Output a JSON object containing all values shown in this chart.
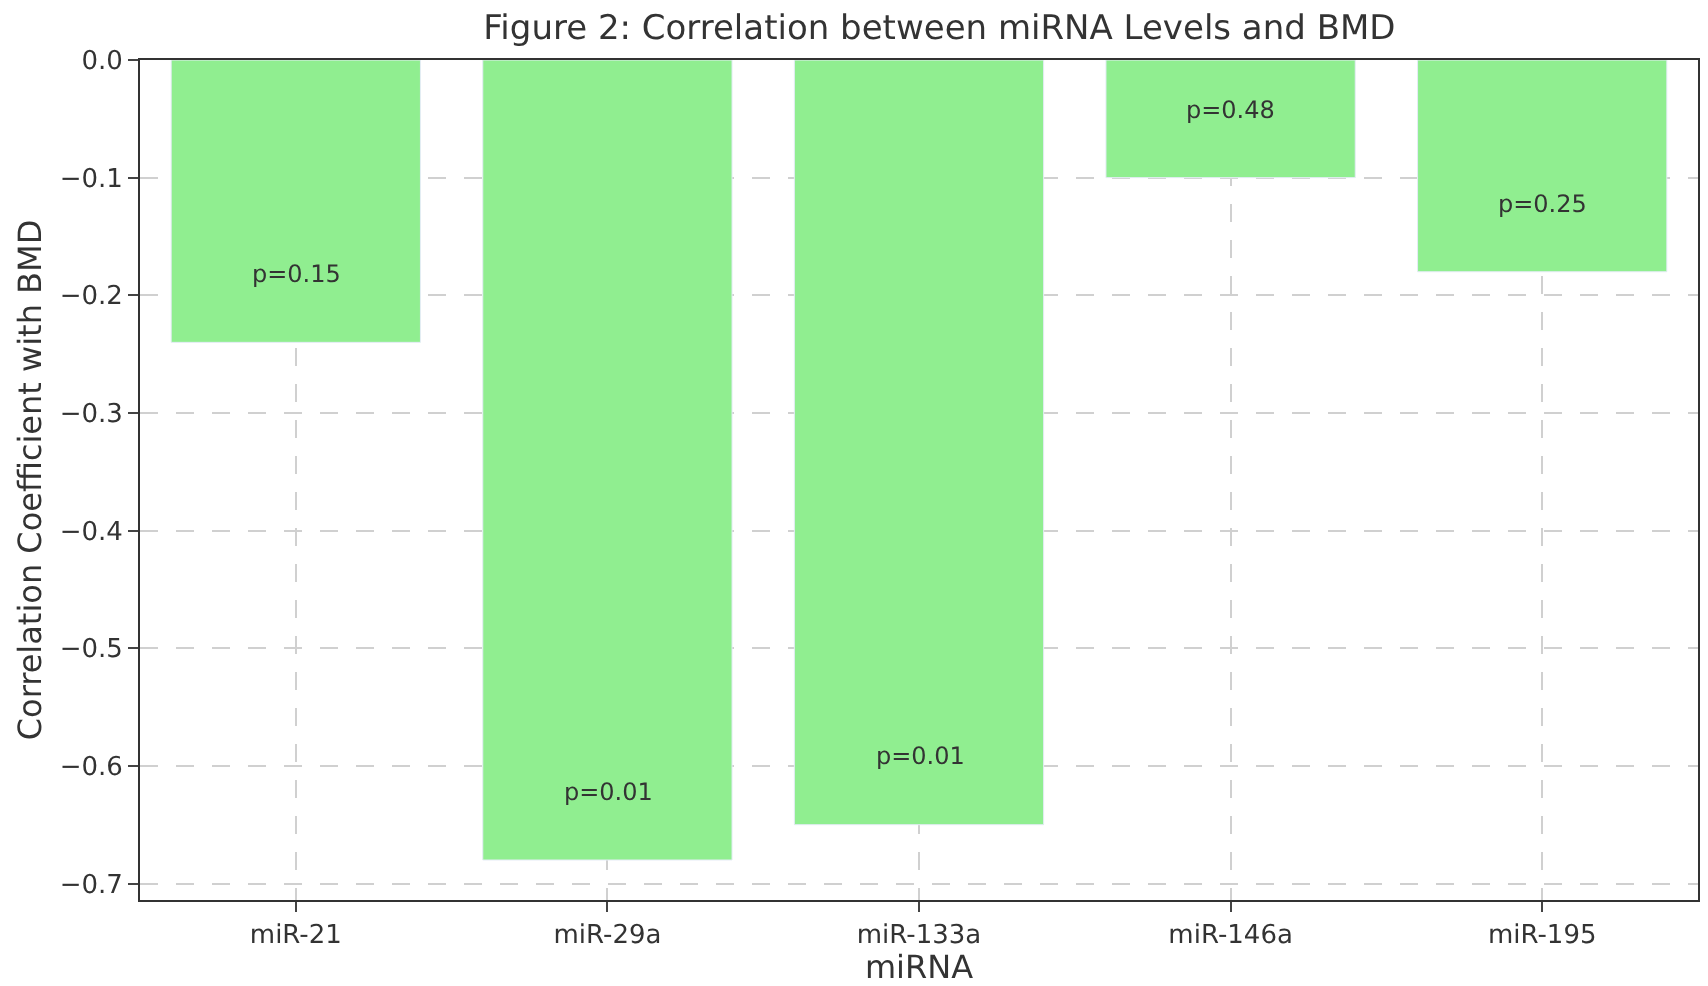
{
  "chart_data": {
    "type": "bar",
    "title": "Figure 2: Correlation between miRNA Levels and BMD",
    "xlabel": "miRNA",
    "ylabel": "Correlation Coefficient with BMD",
    "categories": [
      "miR-21",
      "miR-29a",
      "miR-133a",
      "miR-146a",
      "miR-195"
    ],
    "values": [
      -0.24,
      -0.68,
      -0.65,
      -0.1,
      -0.18
    ],
    "color": "#90ee90",
    "ylim": [
      -0.714,
      0
    ],
    "yticks": [
      {
        "value": -0.7,
        "label": "−0.7"
      },
      {
        "value": -0.6,
        "label": "−0.6"
      },
      {
        "value": -0.5,
        "label": "−0.5"
      },
      {
        "value": -0.4,
        "label": "−0.4"
      },
      {
        "value": -0.3,
        "label": "−0.3"
      },
      {
        "value": -0.2,
        "label": "−0.2"
      },
      {
        "value": -0.1,
        "label": "−0.1"
      },
      {
        "value": 0,
        "label": "0.0"
      }
    ],
    "grid": true,
    "annotations": [
      "p=0.15",
      "p=0.01",
      "p=0.01",
      "p=0.48",
      "p=0.25"
    ]
  }
}
